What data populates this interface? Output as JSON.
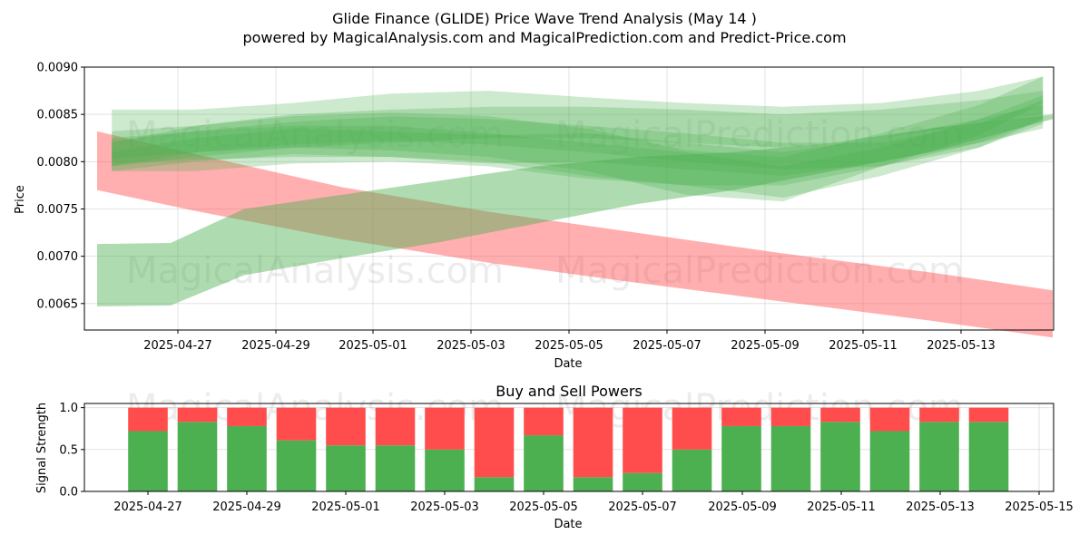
{
  "chart_data": [
    {
      "type": "area",
      "title_line1": "Glide Finance (GLIDE) Price Wave Trend Analysis (May 14 )",
      "title_line2": "powered by MagicalAnalysis.com and MagicalPrediction.com and Predict-Price.com",
      "xlabel": "Date",
      "ylabel": "Price",
      "x_range": [
        "2025-04-25",
        "2025-05-14"
      ],
      "ylim": [
        0.00622,
        0.009
      ],
      "yticks": [
        "0.0065",
        "0.0070",
        "0.0075",
        "0.0080",
        "0.0085",
        "0.0090"
      ],
      "xticks": [
        "2025-04-27",
        "2025-04-29",
        "2025-05-01",
        "2025-05-03",
        "2025-05-05",
        "2025-05-07",
        "2025-05-09",
        "2025-05-11",
        "2025-05-13"
      ],
      "grid": true,
      "watermarks": [
        "MagicalAnalysis.com",
        "MagicalPrediction.com"
      ],
      "series": [
        {
          "name": "sell-trend",
          "color": "#ff4d4d",
          "x": [
            0,
            2,
            5,
            8,
            11,
            14,
            17,
            19.5
          ],
          "upper": [
            0.00832,
            0.00808,
            0.00773,
            0.00747,
            0.00725,
            0.00703,
            0.00683,
            0.00664
          ],
          "lower": [
            0.0077,
            0.00748,
            0.00718,
            0.00693,
            0.00672,
            0.00652,
            0.00632,
            0.00614
          ]
        },
        {
          "name": "buy-trend-low",
          "color": "#4caf50",
          "x": [
            0,
            1.5,
            3,
            5,
            7,
            9,
            11,
            13,
            15,
            17,
            19.5
          ],
          "upper": [
            0.00713,
            0.00714,
            0.0075,
            0.00765,
            0.0078,
            0.00795,
            0.00805,
            0.0081,
            0.0082,
            0.00835,
            0.0085
          ],
          "lower": [
            0.00647,
            0.00648,
            0.0068,
            0.00698,
            0.00715,
            0.00735,
            0.00755,
            0.0077,
            0.0079,
            0.0081,
            0.00845
          ]
        },
        {
          "name": "buy-wave-1",
          "color": "#4caf50",
          "x": [
            0.3,
            2,
            4,
            6,
            8,
            10,
            12,
            14,
            16,
            18,
            19.3
          ],
          "upper": [
            0.00832,
            0.00838,
            0.00848,
            0.00852,
            0.00848,
            0.00835,
            0.00812,
            0.00805,
            0.0083,
            0.0086,
            0.0089
          ],
          "lower": [
            0.00795,
            0.0081,
            0.00815,
            0.00812,
            0.00805,
            0.0079,
            0.00765,
            0.00758,
            0.00795,
            0.00828,
            0.00862
          ]
        },
        {
          "name": "buy-wave-2",
          "color": "#4caf50",
          "x": [
            0.3,
            2,
            4,
            6,
            8,
            10,
            12,
            14,
            16,
            18,
            19.3
          ],
          "upper": [
            0.00825,
            0.00832,
            0.00838,
            0.00838,
            0.0083,
            0.0082,
            0.0081,
            0.00795,
            0.00815,
            0.00845,
            0.0087
          ],
          "lower": [
            0.00798,
            0.00802,
            0.00805,
            0.00805,
            0.008,
            0.00785,
            0.00775,
            0.00762,
            0.00785,
            0.00815,
            0.00845
          ]
        },
        {
          "name": "buy-wave-3",
          "color": "#4caf50",
          "x": [
            0.3,
            2,
            4,
            6,
            8,
            10,
            12,
            14,
            16,
            18,
            19.3
          ],
          "upper": [
            0.0082,
            0.00838,
            0.0085,
            0.00855,
            0.00858,
            0.00858,
            0.00855,
            0.0085,
            0.00855,
            0.00865,
            0.00875
          ],
          "lower": [
            0.00795,
            0.00805,
            0.00815,
            0.0082,
            0.00825,
            0.00825,
            0.0082,
            0.00815,
            0.00825,
            0.0084,
            0.0085
          ]
        },
        {
          "name": "buy-wave-4",
          "color": "#4caf50",
          "x": [
            0.3,
            2,
            4,
            6,
            8,
            10,
            12,
            14,
            16,
            18,
            19.3
          ],
          "upper": [
            0.0081,
            0.00825,
            0.00835,
            0.00832,
            0.00828,
            0.0083,
            0.0082,
            0.0081,
            0.00825,
            0.00845,
            0.0086
          ],
          "lower": [
            0.0079,
            0.008,
            0.00808,
            0.00805,
            0.00798,
            0.008,
            0.00792,
            0.00785,
            0.008,
            0.0082,
            0.00835
          ]
        },
        {
          "name": "buy-wave-5",
          "color": "#4caf50",
          "x": [
            0.3,
            2,
            4,
            6,
            8,
            10,
            12,
            14,
            16,
            18,
            19.3
          ],
          "upper": [
            0.00855,
            0.00855,
            0.00862,
            0.00872,
            0.00875,
            0.00868,
            0.00862,
            0.00858,
            0.00862,
            0.00875,
            0.0089
          ],
          "lower": [
            0.0079,
            0.0079,
            0.00798,
            0.008,
            0.00795,
            0.00782,
            0.00775,
            0.00775,
            0.00795,
            0.0082,
            0.00845
          ]
        },
        {
          "name": "buy-wave-6",
          "color": "#4caf50",
          "x": [
            0.3,
            2,
            4,
            6,
            8,
            10,
            12,
            14,
            16,
            18,
            19.3
          ],
          "upper": [
            0.00822,
            0.00832,
            0.00842,
            0.00848,
            0.00845,
            0.00838,
            0.0083,
            0.0082,
            0.0082,
            0.0084,
            0.00865
          ],
          "lower": [
            0.00803,
            0.0081,
            0.00818,
            0.00822,
            0.00818,
            0.0081,
            0.008,
            0.00792,
            0.00795,
            0.00815,
            0.0084
          ]
        }
      ]
    },
    {
      "type": "bar",
      "title": "Buy and Sell Powers",
      "xlabel": "Date",
      "ylabel": "Signal Strength",
      "ylim": [
        0,
        1.05
      ],
      "yticks": [
        "0.0",
        "0.5",
        "1.0"
      ],
      "xticks": [
        "2025-04-27",
        "2025-04-29",
        "2025-05-01",
        "2025-05-03",
        "2025-05-05",
        "2025-05-07",
        "2025-05-09",
        "2025-05-11",
        "2025-05-13",
        "2025-05-15"
      ],
      "categories": [
        "2025-04-27",
        "2025-04-28",
        "2025-04-29",
        "2025-04-30",
        "2025-05-01",
        "2025-05-02",
        "2025-05-03",
        "2025-05-04",
        "2025-05-05",
        "2025-05-06",
        "2025-05-07",
        "2025-05-08",
        "2025-05-09",
        "2025-05-10",
        "2025-05-11",
        "2025-05-12",
        "2025-05-13",
        "2025-05-14"
      ],
      "series": [
        {
          "name": "Buy",
          "color": "#4caf50",
          "values": [
            0.72,
            0.83,
            0.78,
            0.61,
            0.55,
            0.55,
            0.5,
            0.17,
            0.67,
            0.17,
            0.22,
            0.5,
            0.78,
            0.78,
            0.83,
            0.72,
            0.83,
            0.83
          ]
        },
        {
          "name": "Sell",
          "color": "#ff4d4d",
          "values": [
            0.28,
            0.17,
            0.22,
            0.39,
            0.45,
            0.45,
            0.5,
            0.83,
            0.33,
            0.83,
            0.78,
            0.5,
            0.22,
            0.22,
            0.17,
            0.28,
            0.17,
            0.17
          ]
        }
      ]
    }
  ]
}
